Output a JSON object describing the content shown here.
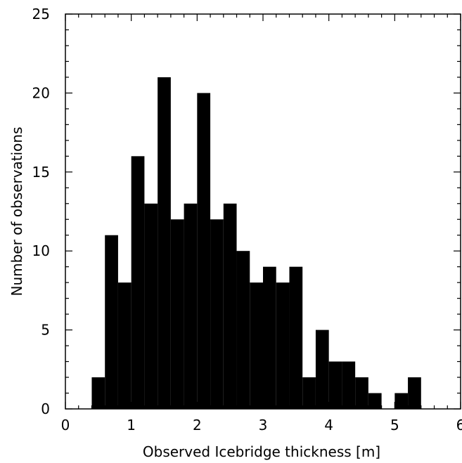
{
  "chart_data": {
    "type": "bar",
    "xlabel": "Observed Icebridge thickness [m]",
    "ylabel": "Number of observations",
    "xlim": [
      0,
      6
    ],
    "ylim": [
      0,
      25
    ],
    "bin_width": 0.2,
    "bins": [
      {
        "x0": 0.4,
        "value": 2
      },
      {
        "x0": 0.6,
        "value": 11
      },
      {
        "x0": 0.8,
        "value": 8
      },
      {
        "x0": 1.0,
        "value": 16
      },
      {
        "x0": 1.2,
        "value": 13
      },
      {
        "x0": 1.4,
        "value": 21
      },
      {
        "x0": 1.6,
        "value": 12
      },
      {
        "x0": 1.8,
        "value": 13
      },
      {
        "x0": 2.0,
        "value": 20
      },
      {
        "x0": 2.2,
        "value": 12
      },
      {
        "x0": 2.4,
        "value": 13
      },
      {
        "x0": 2.6,
        "value": 10
      },
      {
        "x0": 2.8,
        "value": 8
      },
      {
        "x0": 3.0,
        "value": 9
      },
      {
        "x0": 3.2,
        "value": 8
      },
      {
        "x0": 3.4,
        "value": 9
      },
      {
        "x0": 3.6,
        "value": 2
      },
      {
        "x0": 3.8,
        "value": 5
      },
      {
        "x0": 4.0,
        "value": 3
      },
      {
        "x0": 4.2,
        "value": 3
      },
      {
        "x0": 4.4,
        "value": 2
      },
      {
        "x0": 4.6,
        "value": 1
      },
      {
        "x0": 4.8,
        "value": 0
      },
      {
        "x0": 5.0,
        "value": 1
      },
      {
        "x0": 5.2,
        "value": 2
      }
    ],
    "x_ticks": [
      "0",
      "1",
      "2",
      "3",
      "4",
      "5",
      "6"
    ],
    "y_ticks": [
      "0",
      "5",
      "10",
      "15",
      "20",
      "25"
    ],
    "bar_color": "#000000",
    "grid": false
  }
}
